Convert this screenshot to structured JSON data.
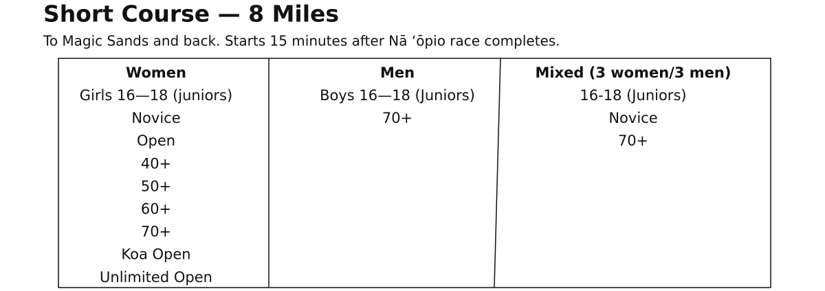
{
  "title": "Short Course  — 8 Miles",
  "subtitle": "To Magic Sands and back.  Starts 15 minutes after Nā ʻōpio race completes.",
  "table": {
    "columns": [
      {
        "header": "Women",
        "items": [
          "Girls 16—18 (juniors)",
          "Novice",
          "Open",
          "40+",
          "50+",
          "60+",
          "70+",
          "Koa Open",
          "Unlimited Open"
        ]
      },
      {
        "header": "Men",
        "items": [
          "Boys 16—18 (Juniors)",
          "70+"
        ]
      },
      {
        "header": "Mixed (3 women/3 men)",
        "items": [
          "16-18 (Juniors)",
          "Novice",
          "70+"
        ]
      }
    ]
  }
}
